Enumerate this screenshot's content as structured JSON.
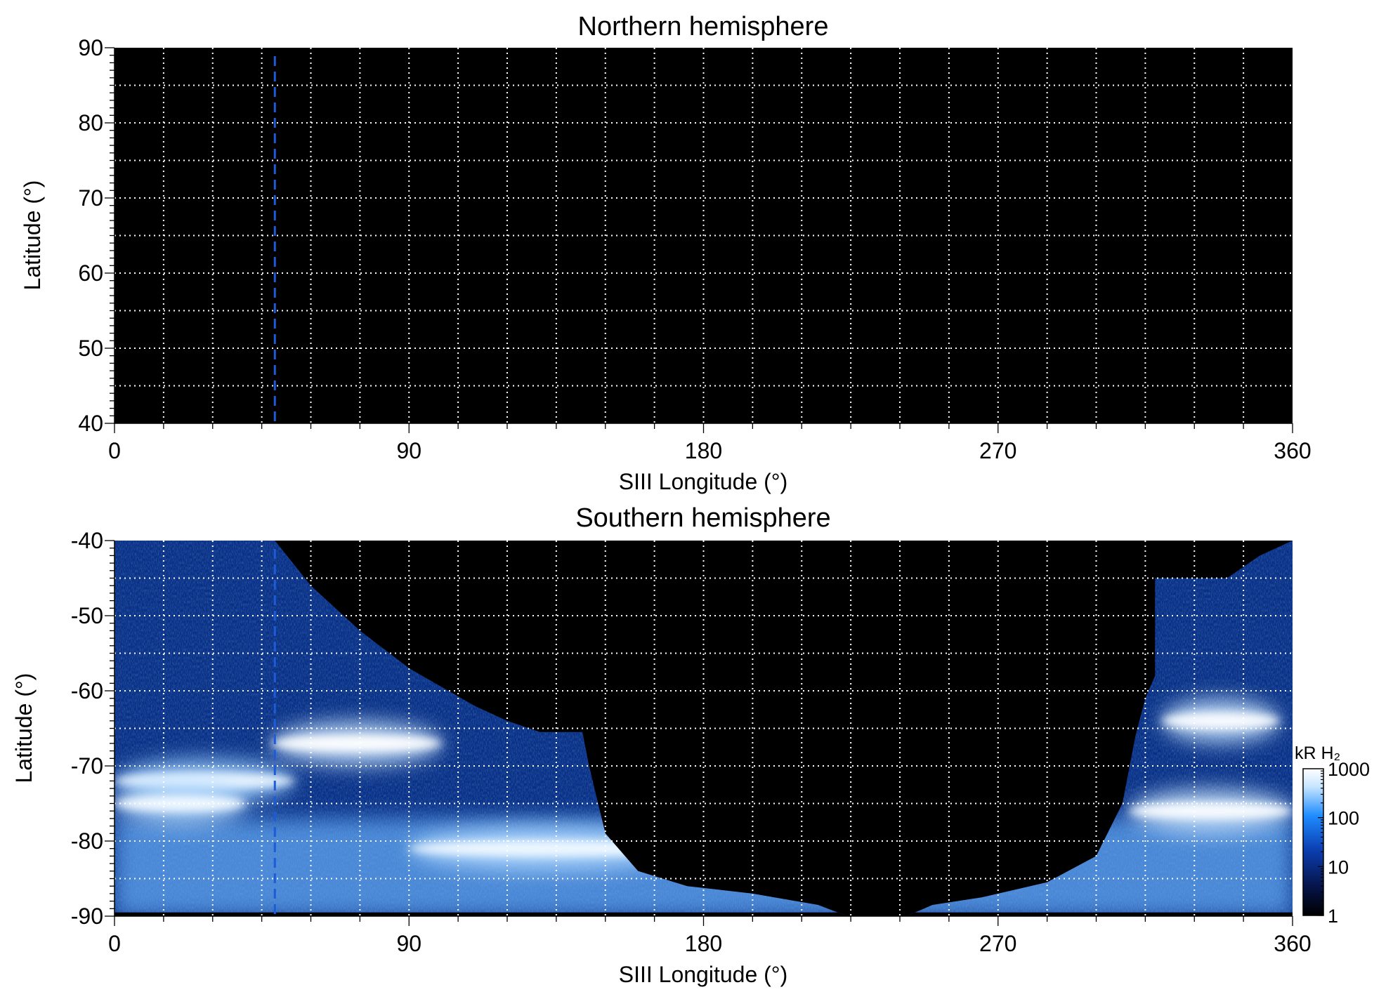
{
  "chart_data": [
    {
      "type": "heatmap",
      "title": "Northern hemisphere",
      "xlabel": "SIII Longitude (°)",
      "ylabel": "Latitude (°)",
      "xlim": [
        0,
        360
      ],
      "ylim": [
        40,
        90
      ],
      "x_ticks": [
        "0",
        "90",
        "180",
        "270",
        "360"
      ],
      "y_ticks": [
        "40",
        "50",
        "60",
        "70",
        "80",
        "90"
      ],
      "grid": true,
      "background": "#000000",
      "reference_line": {
        "longitude": 49,
        "color": "#1e5bd8",
        "style": "dashed"
      },
      "emission": "none"
    },
    {
      "type": "heatmap",
      "title": "Southern hemisphere",
      "xlabel": "SIII Longitude (°)",
      "ylabel": "Latitude (°)",
      "xlim": [
        0,
        360
      ],
      "ylim": [
        -90,
        -40
      ],
      "x_ticks": [
        "0",
        "90",
        "180",
        "270",
        "360"
      ],
      "y_ticks": [
        "-40",
        "-50",
        "-60",
        "-70",
        "-80",
        "-90"
      ],
      "grid": true,
      "background": "#000000",
      "reference_line": {
        "longitude": 49,
        "color": "#1e5bd8",
        "style": "dashed"
      },
      "coverage_boundary": [
        {
          "lon": 0,
          "lat": -40
        },
        {
          "lon": 49,
          "lat": -40
        },
        {
          "lon": 60,
          "lat": -46
        },
        {
          "lon": 75,
          "lat": -52
        },
        {
          "lon": 90,
          "lat": -57
        },
        {
          "lon": 110,
          "lat": -62
        },
        {
          "lon": 120,
          "lat": -64
        },
        {
          "lon": 130,
          "lat": -65.5
        },
        {
          "lon": 143,
          "lat": -65.5
        },
        {
          "lon": 145,
          "lat": -70
        },
        {
          "lon": 150,
          "lat": -79
        },
        {
          "lon": 160,
          "lat": -84
        },
        {
          "lon": 175,
          "lat": -86
        },
        {
          "lon": 195,
          "lat": -87
        },
        {
          "lon": 215,
          "lat": -88.5
        },
        {
          "lon": 224,
          "lat": -90
        },
        {
          "lon": 242,
          "lat": -90
        },
        {
          "lon": 250,
          "lat": -88.5
        },
        {
          "lon": 265,
          "lat": -87.5
        },
        {
          "lon": 285,
          "lat": -85.5
        },
        {
          "lon": 300,
          "lat": -82
        },
        {
          "lon": 308,
          "lat": -75
        },
        {
          "lon": 312,
          "lat": -66
        },
        {
          "lon": 315,
          "lat": -61
        },
        {
          "lon": 318,
          "lat": -58
        },
        {
          "lon": 318,
          "lat": -45
        },
        {
          "lon": 340,
          "lat": -45
        },
        {
          "lon": 350,
          "lat": -42
        },
        {
          "lon": 360,
          "lat": -40
        }
      ],
      "bright_features": [
        {
          "lon_range": [
            0,
            55
          ],
          "lat": -72,
          "level_kR": 600
        },
        {
          "lon_range": [
            0,
            40
          ],
          "lat": -75,
          "level_kR": 700
        },
        {
          "lon_range": [
            48,
            100
          ],
          "lat": -67,
          "level_kR": 1000
        },
        {
          "lon_range": [
            90,
            175
          ],
          "lat": -81,
          "level_kR": 700
        },
        {
          "lon_range": [
            320,
            356
          ],
          "lat": -64,
          "level_kR": 900
        },
        {
          "lon_range": [
            310,
            360
          ],
          "lat": -76,
          "level_kR": 900
        }
      ],
      "colorbar": {
        "label": "kR H₂",
        "scale": "log",
        "range": [
          1,
          1000
        ],
        "ticks": [
          "1",
          "10",
          "100",
          "1000"
        ],
        "colors": [
          "#000000",
          "#06144a",
          "#0b3fb2",
          "#1e8cff",
          "#c8e6ff",
          "#ffffff"
        ]
      }
    }
  ]
}
